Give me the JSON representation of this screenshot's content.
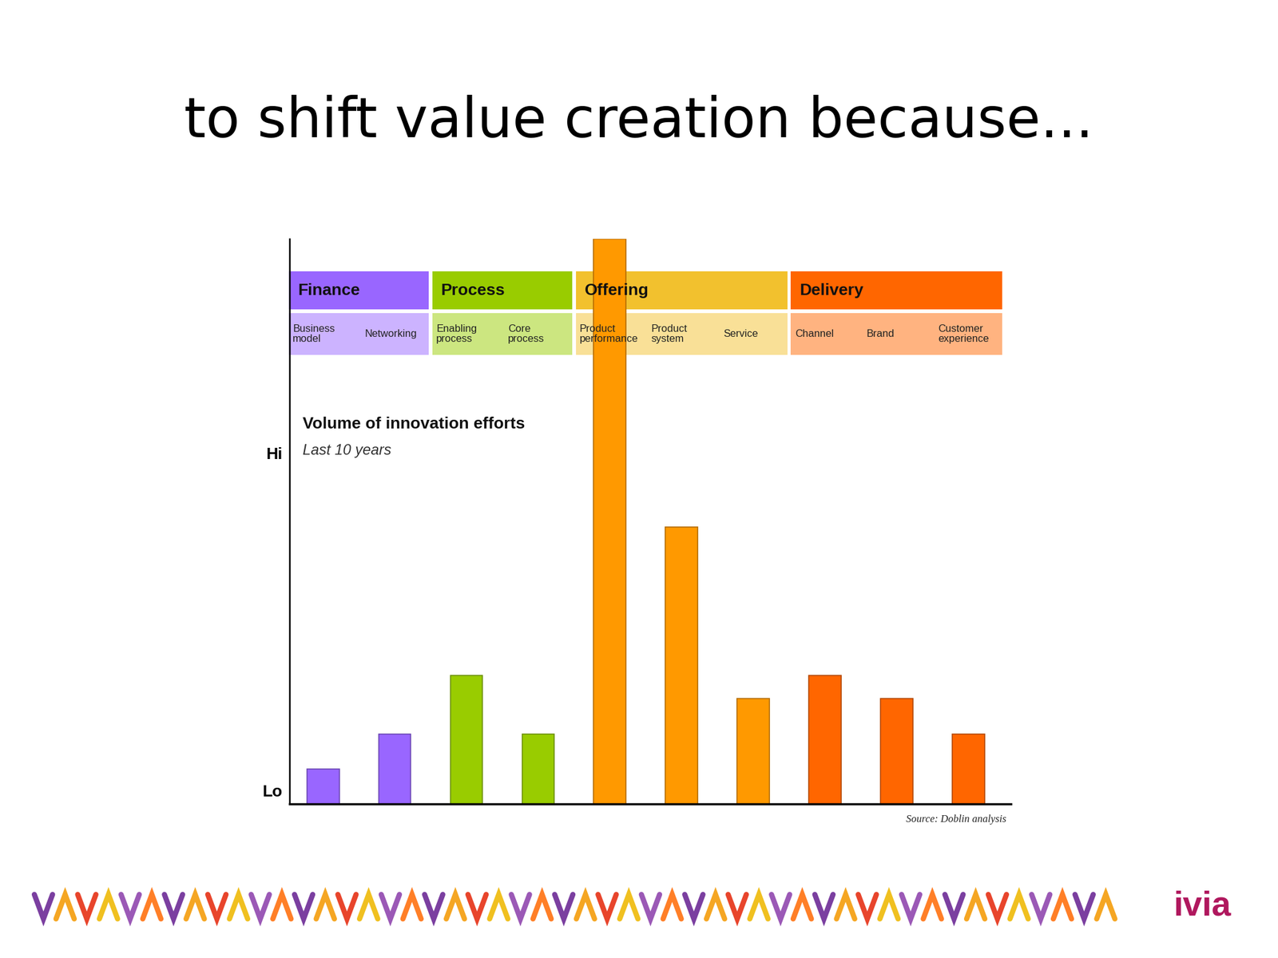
{
  "chart_data": {
    "type": "bar",
    "title": "to shift value creation because...",
    "y_title": "Volume of innovation efforts",
    "y_subtitle": "Last 10 years",
    "source": "Source: Doblin analysis",
    "categories": [
      "Business model",
      "Networking",
      "Enabling process",
      "Core process",
      "Product performance",
      "Product system",
      "Service",
      "Channel",
      "Brand",
      "Customer experience"
    ],
    "values": [
      9,
      18,
      33,
      18,
      145,
      71,
      27,
      33,
      27,
      18
    ],
    "colors": [
      "#9966ff",
      "#9966ff",
      "#99cc00",
      "#99cc00",
      "#ff9900",
      "#ff9900",
      "#ff9900",
      "#ff6600",
      "#ff6600",
      "#ff6600"
    ],
    "groups": [
      {
        "name": "Finance",
        "color": "#9966ff",
        "members": [
          "Business model",
          "Networking"
        ]
      },
      {
        "name": "Process",
        "color": "#99cc00",
        "members": [
          "Enabling process",
          "Core process"
        ]
      },
      {
        "name": "Offering",
        "color": "#f2c12e",
        "members": [
          "Product performance",
          "Product system",
          "Service"
        ]
      },
      {
        "name": "Delivery",
        "color": "#ff6600",
        "members": [
          "Channel",
          "Brand",
          "Customer experience"
        ]
      }
    ],
    "ylim": [
      0,
      145
    ],
    "yticks": [
      {
        "value": 3.5,
        "label": "Lo"
      },
      {
        "value": 90,
        "label": "Hi"
      }
    ],
    "tick_labels": "y",
    "grid": false
  },
  "footer": {
    "logo": "ivia"
  }
}
